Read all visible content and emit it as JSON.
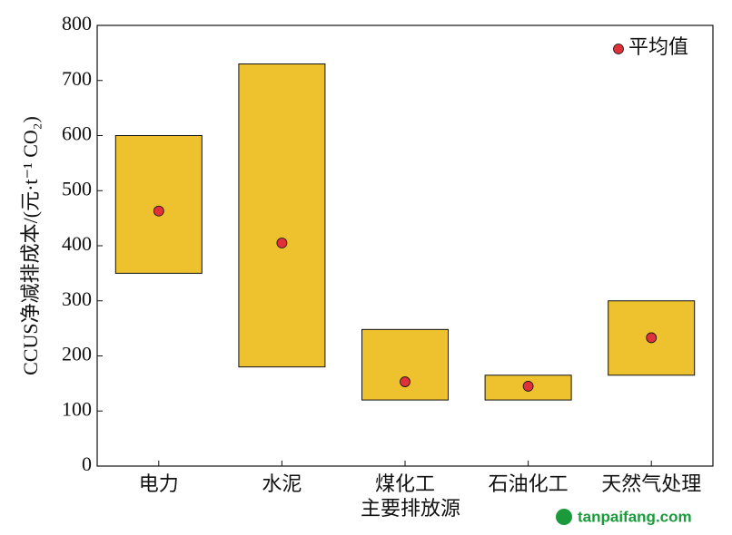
{
  "chart_data": {
    "type": "range",
    "y_label": "CCUS净减排成本/(元·t⁻¹ CO₂)",
    "x_label": "主要排放源",
    "categories": [
      "电力",
      "水泥",
      "煤化工",
      "石油化工",
      "天然气处理"
    ],
    "low": [
      350,
      180,
      120,
      120,
      165
    ],
    "high": [
      600,
      730,
      248,
      165,
      300
    ],
    "bar_color": "#eec22f",
    "mean": {
      "name": "平均值",
      "color": "#e0303a",
      "values": [
        463,
        405,
        153,
        145,
        233
      ]
    },
    "ylim": [
      0,
      800
    ],
    "yticks": [
      0,
      100,
      200,
      300,
      400,
      500,
      600,
      700,
      800
    ],
    "legend": "upper right",
    "watermark": "tanpaifang.com"
  }
}
